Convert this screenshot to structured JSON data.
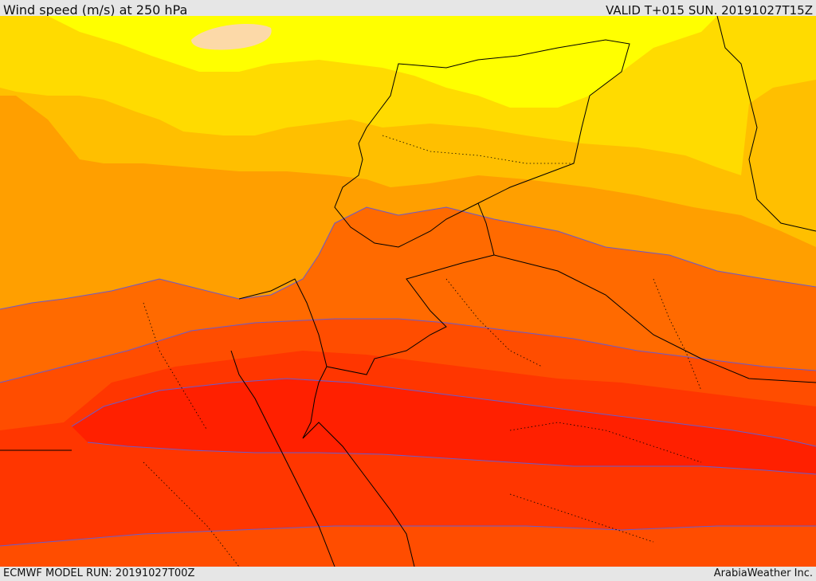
{
  "header": {
    "title": "Wind speed (m/s) at 250 hPa",
    "valid": "VALID T+015 SUN. 20191027T15Z"
  },
  "footer": {
    "model_run": "ECMWF MODEL RUN: 20191027T00Z",
    "credit": "ArabiaWeather Inc."
  },
  "colors": {
    "band_pale": "#fcd9a8",
    "band_yellow": "#ffff00",
    "band_gold": "#ffdb00",
    "band_amber": "#ffbf00",
    "band_light_orange": "#ff9f00",
    "band_orange": "#ff6a00",
    "band_dark_orange": "#ff4d00",
    "band_red_orange": "#ff3600",
    "band_red": "#ff2000",
    "contour_line": "#6a5acd",
    "border_line": "#000000"
  }
}
